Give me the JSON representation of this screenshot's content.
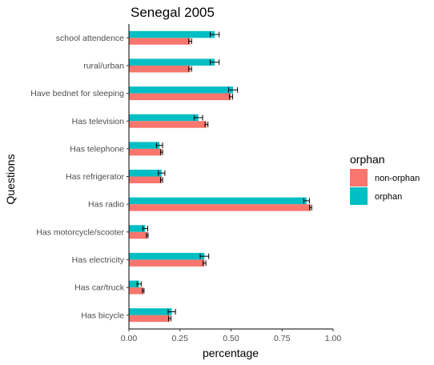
{
  "chart_data": {
    "type": "bar",
    "orientation": "horizontal",
    "title": "Senegal 2005",
    "xlabel": "percentage",
    "ylabel": "Questions",
    "xlim": [
      0,
      1
    ],
    "x_ticks": [
      "0.00",
      "0.25",
      "0.50",
      "0.75",
      "1.00"
    ],
    "x_tick_values": [
      0,
      0.25,
      0.5,
      0.75,
      1.0
    ],
    "grid": false,
    "legend_position": "right",
    "legend_title": "orphan",
    "categories": [
      "school attendence",
      "rural/urban",
      "Have bednet for sleeping",
      "Has television",
      "Has telephone",
      "Has refrigerator",
      "Has radio",
      "Has motorcycle/scooter",
      "Has electricity",
      "Has car/truck",
      "Has bicycle"
    ],
    "series": [
      {
        "name": "non-orphan",
        "color": "#F8766D",
        "values": [
          0.3,
          0.3,
          0.5,
          0.38,
          0.16,
          0.16,
          0.89,
          0.09,
          0.37,
          0.07,
          0.2
        ],
        "errors": [
          0.007,
          0.007,
          0.008,
          0.007,
          0.005,
          0.005,
          0.005,
          0.004,
          0.007,
          0.004,
          0.006
        ]
      },
      {
        "name": "orphan",
        "color": "#00BFC4",
        "values": [
          0.42,
          0.42,
          0.51,
          0.34,
          0.15,
          0.16,
          0.87,
          0.08,
          0.37,
          0.05,
          0.21
        ],
        "errors": [
          0.022,
          0.022,
          0.022,
          0.021,
          0.015,
          0.016,
          0.014,
          0.012,
          0.021,
          0.01,
          0.018
        ]
      }
    ]
  }
}
